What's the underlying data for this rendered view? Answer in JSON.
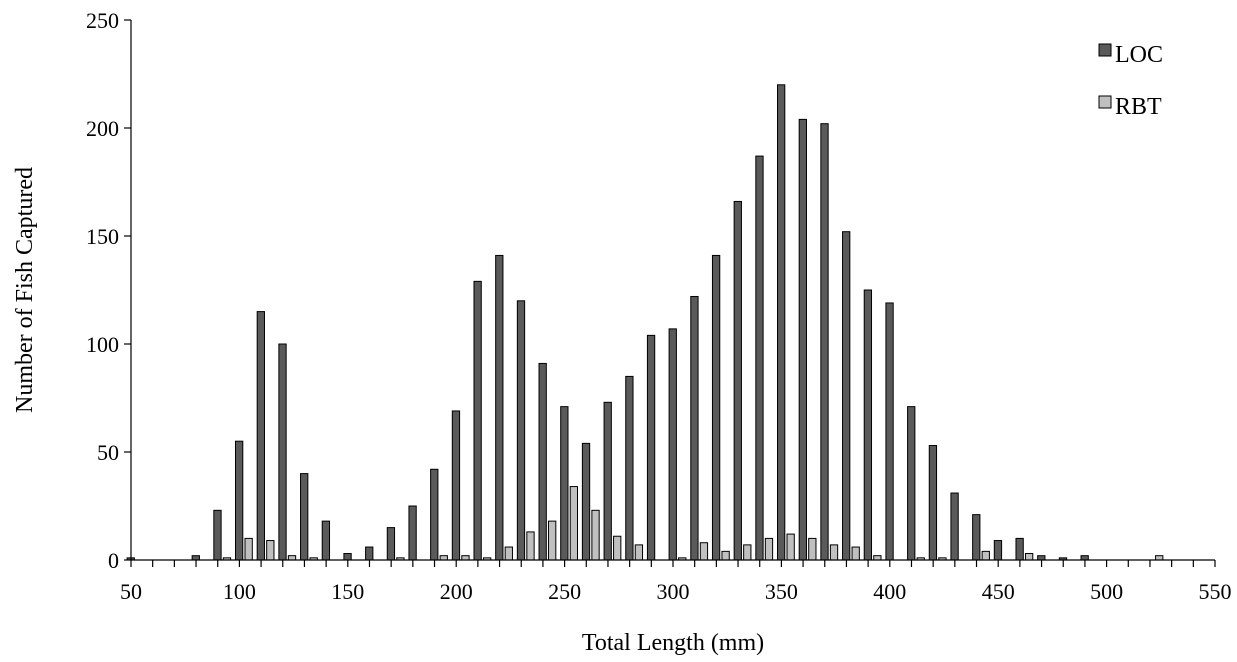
{
  "chart_data": {
    "type": "bar",
    "title": "",
    "xlabel": "Total Length (mm)",
    "ylabel": "Number of Fish Captured",
    "ylim": [
      0,
      250
    ],
    "y_ticks": [
      "0",
      "50",
      "100",
      "150",
      "200",
      "250"
    ],
    "x_ticks": [
      "50",
      "100",
      "150",
      "200",
      "250",
      "300",
      "350",
      "400",
      "450",
      "500",
      "550"
    ],
    "grid": false,
    "legend_position": "top-right",
    "categories": [
      50,
      60,
      70,
      80,
      90,
      100,
      110,
      120,
      130,
      140,
      150,
      160,
      170,
      180,
      190,
      200,
      210,
      220,
      230,
      240,
      250,
      260,
      270,
      280,
      290,
      300,
      310,
      320,
      330,
      340,
      350,
      360,
      370,
      380,
      390,
      400,
      410,
      420,
      430,
      440,
      450,
      460,
      470,
      480,
      490,
      500,
      510,
      520,
      530,
      540
    ],
    "series": [
      {
        "name": "LOC",
        "color": "#5a5a5a",
        "values": [
          1,
          0,
          0,
          2,
          23,
          55,
          115,
          100,
          40,
          18,
          3,
          6,
          15,
          25,
          42,
          69,
          129,
          141,
          120,
          91,
          71,
          54,
          73,
          85,
          104,
          107,
          122,
          141,
          166,
          187,
          220,
          204,
          202,
          152,
          125,
          119,
          71,
          53,
          31,
          21,
          9,
          10,
          2,
          1,
          2,
          0,
          0,
          0,
          0,
          0
        ]
      },
      {
        "name": "RBT",
        "color": "#c0c0c0",
        "values": [
          0,
          0,
          0,
          0,
          1,
          10,
          9,
          2,
          1,
          0,
          0,
          0,
          1,
          0,
          2,
          2,
          1,
          6,
          13,
          18,
          34,
          23,
          11,
          7,
          0,
          1,
          8,
          4,
          7,
          10,
          12,
          10,
          7,
          6,
          2,
          0,
          1,
          1,
          0,
          4,
          0,
          3,
          0,
          0,
          0,
          0,
          0,
          2,
          0,
          0
        ]
      }
    ]
  }
}
